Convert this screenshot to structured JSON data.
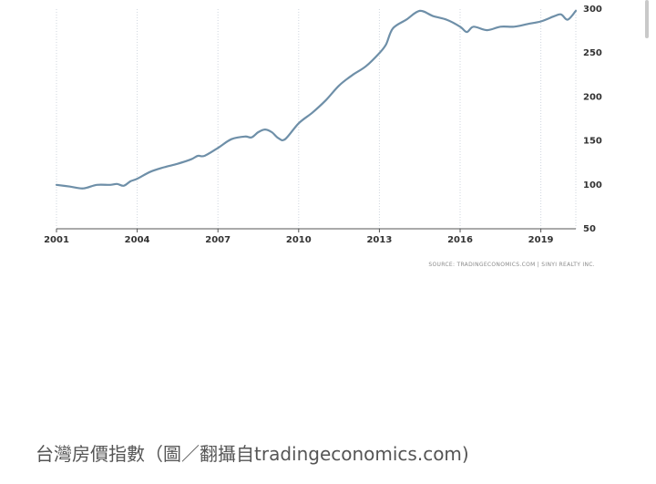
{
  "chart_data": {
    "type": "line",
    "x_ticks": [
      "2001",
      "2004",
      "2007",
      "2010",
      "2013",
      "2016",
      "2019"
    ],
    "y_ticks": [
      "50",
      "100",
      "150",
      "200",
      "250",
      "300"
    ],
    "ylim": [
      50,
      300
    ],
    "xlim": [
      2001,
      2020.3
    ],
    "grid": "vertical-dotted",
    "line_color": "#6e8fa8",
    "series": [
      {
        "x": [
          2001.0,
          2001.5,
          2002.0,
          2002.5,
          2003.0,
          2003.25,
          2003.5,
          2003.75,
          2004.0,
          2004.5,
          2005.0,
          2005.5,
          2006.0,
          2006.25,
          2006.5,
          2007.0,
          2007.5,
          2008.0,
          2008.25,
          2008.5,
          2008.75,
          2009.0,
          2009.25,
          2009.5,
          2010.0,
          2010.5,
          2011.0,
          2011.5,
          2012.0,
          2012.5,
          2013.0,
          2013.25,
          2013.5,
          2014.0,
          2014.5,
          2015.0,
          2015.5,
          2016.0,
          2016.25,
          2016.5,
          2017.0,
          2017.5,
          2018.0,
          2018.5,
          2019.0,
          2019.5,
          2019.75,
          2020.0,
          2020.3
        ],
        "y": [
          100,
          98,
          96,
          100,
          100,
          101,
          99,
          104,
          107,
          115,
          120,
          124,
          129,
          133,
          133,
          142,
          152,
          155,
          154,
          160,
          163,
          160,
          153,
          152,
          170,
          182,
          196,
          213,
          225,
          235,
          250,
          260,
          278,
          288,
          298,
          292,
          288,
          280,
          274,
          280,
          276,
          280,
          280,
          283,
          286,
          292,
          294,
          288,
          298
        ]
      }
    ]
  },
  "source_text": "SOURCE: TRADINGECONOMICS.COM | SINYI REALTY INC.",
  "caption": "台灣房價指數（圖／翻攝自tradingeconomics.com)"
}
